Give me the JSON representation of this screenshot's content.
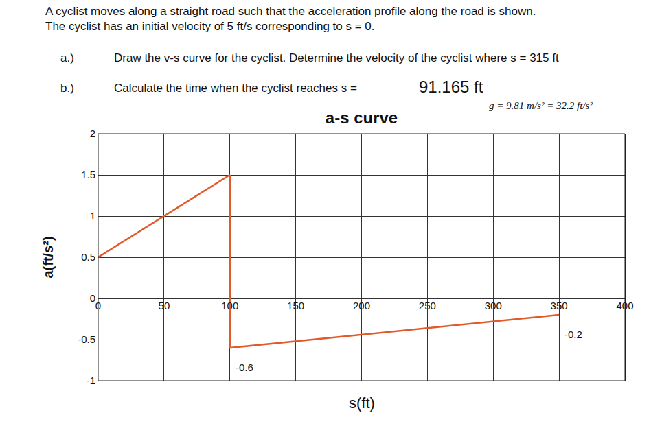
{
  "problem": {
    "intro": [
      "A cyclist moves along a straight road such that the acceleration profile along the road is shown.",
      "The cyclist has an initial velocity of 5 ft/s corresponding to s = 0."
    ],
    "parts": [
      {
        "label": "a.)",
        "text": "Draw the v-s curve for the cyclist. Determine the velocity of the cyclist where s = 315 ft"
      },
      {
        "label": "b.)",
        "text": "Calculate the time when the cyclist reaches s =",
        "value_text": "91.165 ft"
      }
    ],
    "note": "g = 9.81 m/s² = 32.2 ft/s²"
  },
  "chart_data": {
    "type": "line",
    "title": "a-s curve",
    "x_label": "s(ft)",
    "y_label": "a(ft/s²)",
    "series": [
      {
        "name": "a",
        "color": "#e2592a",
        "x": [
          0,
          100,
          100,
          350
        ],
        "values": [
          0.5,
          1.5,
          -0.6,
          -0.2
        ]
      }
    ],
    "annotations": [
      {
        "text": "-0.6",
        "x": 100,
        "y": -0.6
      },
      {
        "text": "-0.2",
        "x": 350,
        "y": -0.2
      }
    ],
    "xlim": [
      0,
      400
    ],
    "xticks": [
      0,
      50,
      100,
      150,
      200,
      250,
      300,
      350,
      400
    ],
    "ylim": [
      -1,
      2
    ],
    "yticks": [
      -1,
      -0.5,
      0,
      0.5,
      1,
      1.5,
      2
    ],
    "grid": true
  }
}
